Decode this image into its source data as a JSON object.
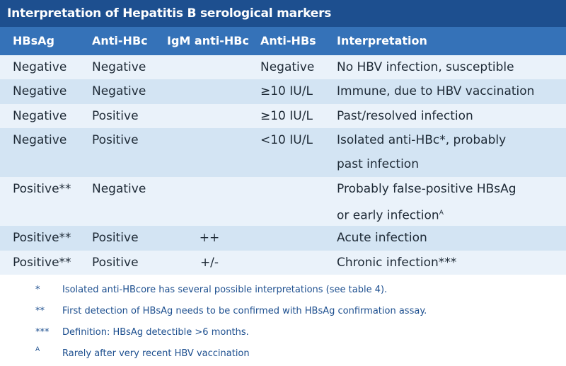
{
  "table": {
    "title": "Interpretation of Hepatitis B serological markers",
    "headers": [
      "HBsAg",
      "Anti-HBc",
      "IgM anti-HBc",
      "Anti-HBs",
      "Interpretation"
    ],
    "rows": [
      {
        "hbsag": "Negative",
        "antihbc": "Negative",
        "igm": "",
        "antihbs": "Negative",
        "interp": "No HBV infection, susceptible"
      },
      {
        "hbsag": "Negative",
        "antihbc": "Negative",
        "igm": "",
        "antihbs": "≥10 IU/L",
        "interp": "Immune, due to HBV vaccination"
      },
      {
        "hbsag": "Negative",
        "antihbc": "Positive",
        "igm": "",
        "antihbs": "≥10 IU/L",
        "interp": "Past/resolved infection"
      },
      {
        "hbsag": "Negative",
        "antihbc": "Positive",
        "igm": "",
        "antihbs": "<10 IU/L",
        "interp_line1": "Isolated anti-HBc*, probably",
        "interp_line2": "past infection"
      },
      {
        "hbsag": "Positive**",
        "antihbc": "Negative",
        "igm": "",
        "antihbs": "",
        "interp_line1": "Probably false-positive HBsAg",
        "interp_line2": "or early infection",
        "interp_sup": "A"
      },
      {
        "hbsag": "Positive**",
        "antihbc": "Positive",
        "igm": "++",
        "antihbs": "",
        "interp": "Acute infection"
      },
      {
        "hbsag": "Positive**",
        "antihbc": "Positive",
        "igm": "+/-",
        "antihbs": "",
        "interp": "Chronic infection***"
      }
    ]
  },
  "footnotes": [
    {
      "mark": "*",
      "text": "Isolated anti-HBcore has several possible interpretations (see table 4)."
    },
    {
      "mark": "**",
      "text": "First detection of HBsAg needs to be confirmed with HBsAg confirmation assay."
    },
    {
      "mark": "***",
      "text": "Definition: HBsAg detectible >6 months."
    },
    {
      "mark": "A",
      "text": "Rarely after very recent HBV vaccination"
    }
  ],
  "colors": {
    "title_bg": "#1d4f8f",
    "header_bg": "#3572b8",
    "row_light": "#eaf2fa",
    "row_dark": "#d3e4f3",
    "footnote_text": "#1d4f8f"
  }
}
